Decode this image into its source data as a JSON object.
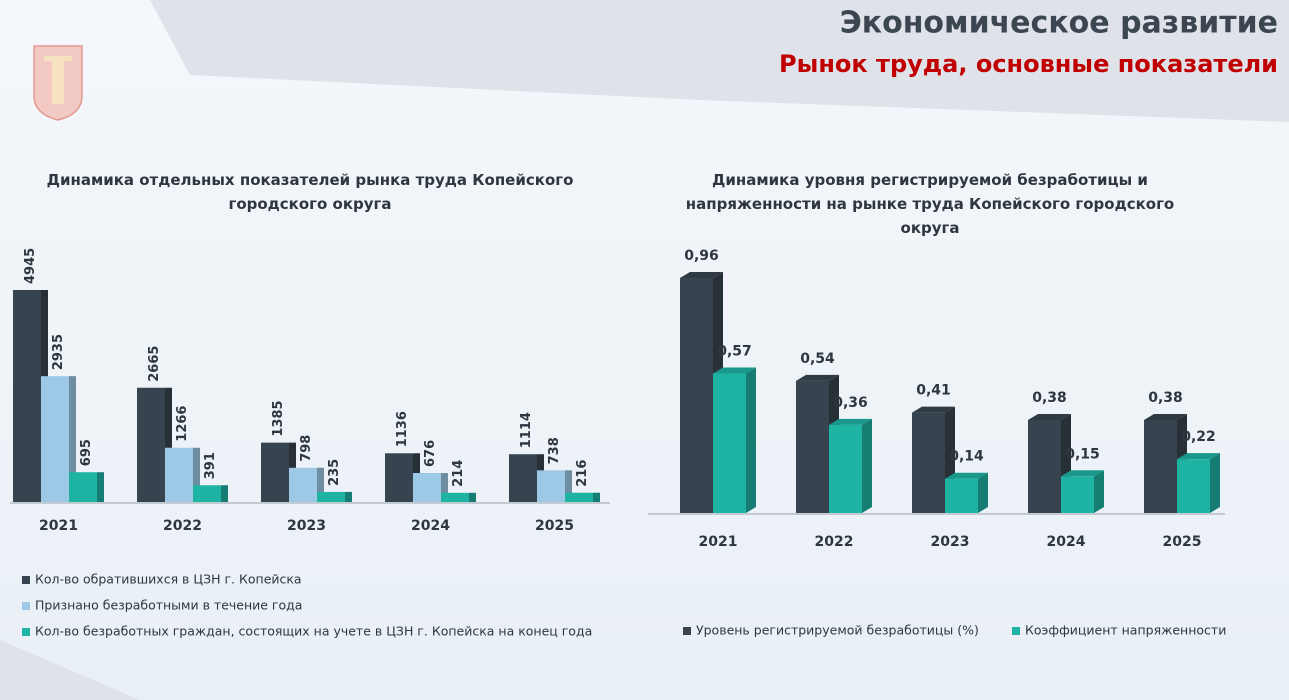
{
  "header": {
    "title": "Экономическое развитие",
    "subtitle": "Рынок труда, основные показатели"
  },
  "chart_data": [
    {
      "type": "bar",
      "title": "Динамика отдельных показателей рынка труда Копейского городского округа",
      "categories": [
        "2021",
        "2022",
        "2023",
        "2024",
        "2025"
      ],
      "series": [
        {
          "name": "Кол-во обратившихся в ЦЗН г. Копейска",
          "color": "#37444f",
          "values": [
            4945,
            2665,
            1385,
            1136,
            1114
          ]
        },
        {
          "name": "Признано безработными в течение года",
          "color": "#9dc9e6",
          "values": [
            2935,
            1266,
            798,
            676,
            738
          ]
        },
        {
          "name": "Кол-во безработных граждан, состоящих на учете в ЦЗН г. Копейска на конец года",
          "color": "#1fb3a3",
          "values": [
            695,
            391,
            235,
            214,
            216
          ]
        }
      ]
    },
    {
      "type": "bar",
      "title": "Динамика уровня регистрируемой безработицы и напряженности на рынке труда Копейского городского округа",
      "categories": [
        "2021",
        "2022",
        "2023",
        "2024",
        "2025"
      ],
      "series": [
        {
          "name": "Уровень регистрируемой безработицы (%)",
          "color": "#37444f",
          "values": [
            0.96,
            0.54,
            0.41,
            0.38,
            0.38
          ],
          "value_labels": [
            "0,96",
            "0,54",
            "0,41",
            "0,38",
            "0,38"
          ]
        },
        {
          "name": "Коэффициент напряженности",
          "color": "#1fb3a3",
          "values": [
            0.57,
            0.36,
            0.14,
            0.15,
            0.22
          ],
          "value_labels": [
            "0,57",
            "0,36",
            "0,14",
            "0,15",
            "0,22"
          ]
        }
      ]
    }
  ]
}
